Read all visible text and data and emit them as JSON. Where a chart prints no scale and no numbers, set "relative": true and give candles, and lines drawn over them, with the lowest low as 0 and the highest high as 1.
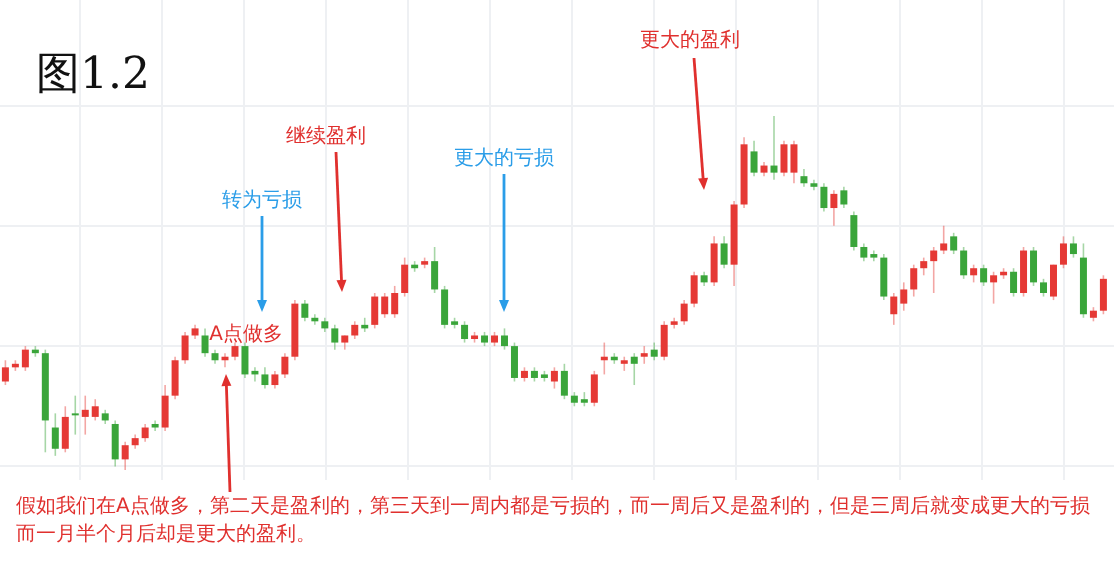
{
  "chart_data": {
    "type": "candlestick",
    "relative": true,
    "title": "图1.2",
    "annotations": [
      "更大的盈利",
      "继续盈利",
      "转为亏损",
      "更大的亏损",
      "A点做多",
      "假如我们在A点做多，第二天是盈利的，第三天到一周内都是亏损的，而一周后又是盈利的，但是三周后就变成更大的亏损",
      "而一月半个月后却是更大的盈利。"
    ],
    "categories": [
      null,
      null,
      null,
      null,
      null,
      null,
      null,
      null,
      null,
      null,
      null,
      null,
      null,
      null,
      null,
      null,
      null,
      null,
      null,
      null,
      null,
      null,
      null,
      null,
      null,
      null,
      null,
      null,
      null,
      null,
      null,
      null,
      null,
      null,
      null,
      null,
      null,
      null,
      null,
      null,
      null,
      null,
      null,
      null,
      null,
      null,
      null,
      null,
      null,
      null,
      null,
      null,
      null,
      null,
      null,
      null,
      null,
      null,
      null,
      null,
      null,
      null,
      null,
      null,
      null,
      null,
      null,
      null,
      null,
      null,
      null,
      null,
      null,
      null,
      null,
      null,
      null,
      null,
      null,
      null,
      null,
      null,
      null,
      null,
      null,
      null,
      null,
      null,
      null,
      null,
      null,
      null,
      null,
      null,
      null,
      null,
      null,
      null,
      null,
      null,
      null,
      null,
      null,
      null,
      null,
      null,
      null,
      null,
      null,
      null,
      null
    ],
    "ohlc": [
      [
        0.25,
        0.31,
        0.24,
        0.29
      ],
      [
        0.29,
        0.31,
        0.28,
        0.3
      ],
      [
        0.29,
        0.35,
        0.28,
        0.34
      ],
      [
        0.34,
        0.35,
        0.32,
        0.33
      ],
      [
        0.33,
        0.34,
        0.05,
        0.14
      ],
      [
        0.12,
        0.16,
        0.04,
        0.06
      ],
      [
        0.06,
        0.18,
        0.05,
        0.15
      ],
      [
        0.16,
        0.21,
        0.1,
        0.16
      ],
      [
        0.15,
        0.21,
        0.1,
        0.17
      ],
      [
        0.15,
        0.2,
        0.14,
        0.18
      ],
      [
        0.16,
        0.17,
        0.13,
        0.14
      ],
      [
        0.13,
        0.14,
        0.01,
        0.03
      ],
      [
        0.03,
        0.08,
        0,
        0.07
      ],
      [
        0.07,
        0.1,
        0.06,
        0.09
      ],
      [
        0.09,
        0.13,
        0.08,
        0.12
      ],
      [
        0.13,
        0.14,
        0.11,
        0.12
      ],
      [
        0.12,
        0.24,
        0.11,
        0.21
      ],
      [
        0.21,
        0.32,
        0.2,
        0.31
      ],
      [
        0.31,
        0.39,
        0.3,
        0.38
      ],
      [
        0.38,
        0.41,
        0.37,
        0.4
      ],
      [
        0.38,
        0.4,
        0.32,
        0.33
      ],
      [
        0.33,
        0.34,
        0.3,
        0.31
      ],
      [
        0.31,
        0.33,
        0.29,
        0.32
      ],
      [
        0.32,
        0.36,
        0.31,
        0.35
      ],
      [
        0.35,
        0.36,
        0.26,
        0.27
      ],
      [
        0.28,
        0.29,
        0.25,
        0.27
      ],
      [
        0.27,
        0.29,
        0.23,
        0.24
      ],
      [
        0.24,
        0.28,
        0.23,
        0.27
      ],
      [
        0.27,
        0.33,
        0.26,
        0.32
      ],
      [
        0.32,
        0.48,
        0.31,
        0.47
      ],
      [
        0.47,
        0.48,
        0.42,
        0.43
      ],
      [
        0.43,
        0.44,
        0.41,
        0.42
      ],
      [
        0.42,
        0.43,
        0.39,
        0.4
      ],
      [
        0.4,
        0.41,
        0.34,
        0.36
      ],
      [
        0.36,
        0.38,
        0.34,
        0.38
      ],
      [
        0.38,
        0.42,
        0.37,
        0.41
      ],
      [
        0.41,
        0.43,
        0.39,
        0.4
      ],
      [
        0.41,
        0.5,
        0.4,
        0.49
      ],
      [
        0.44,
        0.5,
        0.43,
        0.49
      ],
      [
        0.44,
        0.52,
        0.43,
        0.5
      ],
      [
        0.5,
        0.6,
        0.49,
        0.58
      ],
      [
        0.58,
        0.59,
        0.56,
        0.57
      ],
      [
        0.58,
        0.6,
        0.57,
        0.59
      ],
      [
        0.59,
        0.63,
        0.5,
        0.51
      ],
      [
        0.51,
        0.52,
        0.4,
        0.41
      ],
      [
        0.42,
        0.43,
        0.4,
        0.41
      ],
      [
        0.41,
        0.42,
        0.36,
        0.37
      ],
      [
        0.37,
        0.39,
        0.36,
        0.38
      ],
      [
        0.38,
        0.39,
        0.35,
        0.36
      ],
      [
        0.36,
        0.39,
        0.35,
        0.38
      ],
      [
        0.38,
        0.4,
        0.34,
        0.35
      ],
      [
        0.35,
        0.36,
        0.25,
        0.26
      ],
      [
        0.26,
        0.29,
        0.25,
        0.28
      ],
      [
        0.28,
        0.29,
        0.25,
        0.26
      ],
      [
        0.27,
        0.28,
        0.25,
        0.26
      ],
      [
        0.25,
        0.29,
        0.23,
        0.28
      ],
      [
        0.28,
        0.3,
        0.2,
        0.21
      ],
      [
        0.21,
        0.22,
        0.18,
        0.19
      ],
      [
        0.2,
        0.22,
        0.18,
        0.19
      ],
      [
        0.19,
        0.28,
        0.18,
        0.27
      ],
      [
        0.31,
        0.36,
        0.27,
        0.32
      ],
      [
        0.32,
        0.33,
        0.3,
        0.31
      ],
      [
        0.3,
        0.32,
        0.28,
        0.31
      ],
      [
        0.32,
        0.33,
        0.24,
        0.3
      ],
      [
        0.32,
        0.35,
        0.3,
        0.33
      ],
      [
        0.34,
        0.36,
        0.31,
        0.32
      ],
      [
        0.32,
        0.42,
        0.31,
        0.41
      ],
      [
        0.41,
        0.43,
        0.4,
        0.42
      ],
      [
        0.42,
        0.48,
        0.41,
        0.47
      ],
      [
        0.47,
        0.56,
        0.46,
        0.55
      ],
      [
        0.55,
        0.56,
        0.52,
        0.53
      ],
      [
        0.53,
        0.66,
        0.52,
        0.64
      ],
      [
        0.64,
        0.66,
        0.57,
        0.58
      ],
      [
        0.58,
        0.76,
        0.52,
        0.75
      ],
      [
        0.75,
        0.94,
        0.74,
        0.92
      ],
      [
        0.9,
        0.93,
        0.83,
        0.84
      ],
      [
        0.84,
        0.87,
        0.83,
        0.86
      ],
      [
        0.86,
        1,
        0.82,
        0.84
      ],
      [
        0.84,
        0.93,
        0.83,
        0.92
      ],
      [
        0.84,
        0.93,
        0.81,
        0.92
      ],
      [
        0.83,
        0.85,
        0.8,
        0.81
      ],
      [
        0.81,
        0.82,
        0.79,
        0.8
      ],
      [
        0.8,
        0.81,
        0.73,
        0.74
      ],
      [
        0.74,
        0.79,
        0.69,
        0.78
      ],
      [
        0.79,
        0.8,
        0.74,
        0.75
      ],
      [
        0.72,
        0.73,
        0.62,
        0.63
      ],
      [
        0.63,
        0.64,
        0.59,
        0.6
      ],
      [
        0.61,
        0.62,
        0.59,
        0.6
      ],
      [
        0.6,
        0.61,
        0.48,
        0.49
      ],
      [
        0.44,
        0.5,
        0.41,
        0.49
      ],
      [
        0.47,
        0.53,
        0.45,
        0.51
      ],
      [
        0.51,
        0.58,
        0.49,
        0.57
      ],
      [
        0.57,
        0.6,
        0.55,
        0.59
      ],
      [
        0.59,
        0.63,
        0.5,
        0.62
      ],
      [
        0.62,
        0.69,
        0.61,
        0.64
      ],
      [
        0.66,
        0.67,
        0.61,
        0.62
      ],
      [
        0.62,
        0.63,
        0.54,
        0.55
      ],
      [
        0.55,
        0.58,
        0.53,
        0.57
      ],
      [
        0.57,
        0.58,
        0.52,
        0.53
      ],
      [
        0.53,
        0.56,
        0.47,
        0.55
      ],
      [
        0.55,
        0.57,
        0.54,
        0.56
      ],
      [
        0.56,
        0.57,
        0.49,
        0.5
      ],
      [
        0.5,
        0.63,
        0.49,
        0.62
      ],
      [
        0.62,
        0.63,
        0.52,
        0.53
      ],
      [
        0.53,
        0.54,
        0.49,
        0.5
      ],
      [
        0.49,
        0.58,
        0.48,
        0.58
      ],
      [
        0.58,
        0.66,
        0.57,
        0.64
      ],
      [
        0.64,
        0.66,
        0.6,
        0.61
      ],
      [
        0.6,
        0.64,
        0.43,
        0.44
      ],
      [
        0.43,
        0.46,
        0.42,
        0.45
      ],
      [
        0.45,
        0.55,
        0.44,
        0.54
      ]
    ],
    "colors": [
      "#e53935",
      "#e53935",
      "#e53935",
      "#3aa53a",
      "#3aa53a",
      "#3aa53a",
      "#e53935",
      "#3aa53a",
      "#e53935",
      "#e53935",
      "#3aa53a",
      "#3aa53a",
      "#e53935",
      "#e53935",
      "#e53935",
      "#3aa53a",
      "#e53935",
      "#e53935",
      "#e53935",
      "#e53935",
      "#3aa53a",
      "#3aa53a",
      "#e53935",
      "#e53935",
      "#3aa53a",
      "#3aa53a",
      "#3aa53a",
      "#e53935",
      "#e53935",
      "#e53935",
      "#3aa53a",
      "#3aa53a",
      "#3aa53a",
      "#3aa53a",
      "#e53935",
      "#e53935",
      "#3aa53a",
      "#e53935",
      "#e53935",
      "#e53935",
      "#e53935",
      "#3aa53a",
      "#e53935",
      "#3aa53a",
      "#3aa53a",
      "#3aa53a",
      "#3aa53a",
      "#e53935",
      "#3aa53a",
      "#e53935",
      "#3aa53a",
      "#3aa53a",
      "#e53935",
      "#3aa53a",
      "#3aa53a",
      "#e53935",
      "#3aa53a",
      "#3aa53a",
      "#3aa53a",
      "#e53935",
      "#e53935",
      "#3aa53a",
      "#e53935",
      "#3aa53a",
      "#e53935",
      "#3aa53a",
      "#e53935",
      "#e53935",
      "#e53935",
      "#e53935",
      "#3aa53a",
      "#e53935",
      "#3aa53a",
      "#e53935",
      "#e53935",
      "#3aa53a",
      "#e53935",
      "#3aa53a",
      "#e53935",
      "#e53935",
      "#3aa53a",
      "#3aa53a",
      "#3aa53a",
      "#e53935",
      "#3aa53a",
      "#3aa53a",
      "#3aa53a",
      "#3aa53a",
      "#3aa53a",
      "#e53935",
      "#e53935",
      "#e53935",
      "#e53935",
      "#e53935",
      "#e53935",
      "#3aa53a",
      "#3aa53a",
      "#e53935",
      "#3aa53a",
      "#e53935",
      "#e53935",
      "#3aa53a",
      "#e53935",
      "#3aa53a",
      "#3aa53a",
      "#e53935",
      "#e53935",
      "#3aa53a",
      "#3aa53a",
      "#e53935",
      "#e53935"
    ],
    "grid": true
  }
}
